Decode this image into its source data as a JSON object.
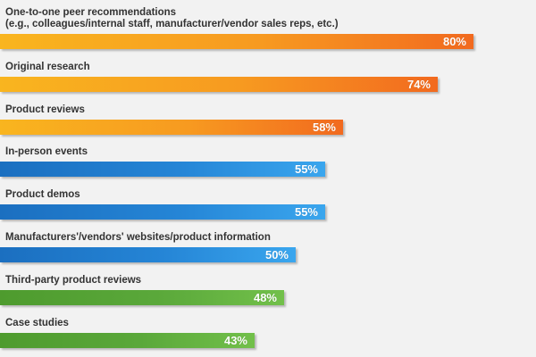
{
  "chart_data": {
    "type": "bar",
    "orientation": "horizontal",
    "title": "",
    "xlabel": "",
    "ylabel": "",
    "xlim": [
      0,
      100
    ],
    "grid": false,
    "categories": [
      [
        "One-to-one peer recommendations",
        "(e.g., colleagues/internal staff, manufacturer/vendor sales reps, etc.)"
      ],
      [
        "Original research"
      ],
      [
        "Product reviews"
      ],
      [
        "In-person events"
      ],
      [
        "Product demos"
      ],
      [
        "Manufacturers'/vendors' websites/product information"
      ],
      [
        "Third-party product reviews"
      ],
      [
        "Case studies"
      ]
    ],
    "values": [
      80,
      74,
      58,
      55,
      55,
      50,
      48,
      43
    ],
    "value_labels": [
      "80%",
      "74%",
      "58%",
      "55%",
      "55%",
      "50%",
      "48%",
      "43%"
    ],
    "bar_colors": [
      "orange",
      "orange",
      "orange",
      "blue",
      "blue",
      "blue",
      "green",
      "green"
    ]
  }
}
